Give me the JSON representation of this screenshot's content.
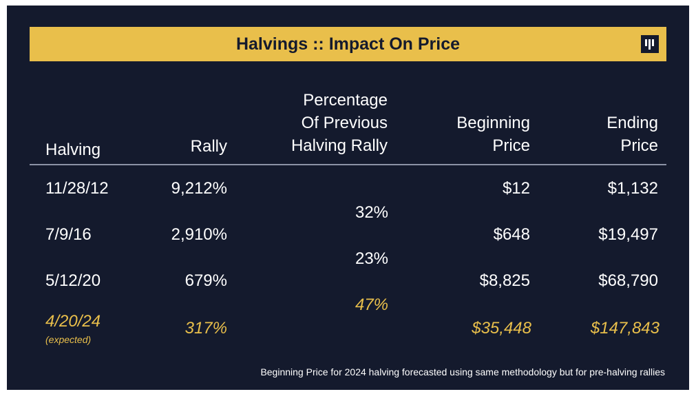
{
  "title": "Halvings :: Impact On Price",
  "colors": {
    "background": "#141a2d",
    "accent": "#e9bf4b",
    "text": "#ffffff",
    "rule": "#8c93a6"
  },
  "logo": {
    "icon": "messari-logo-icon"
  },
  "chart_data": {
    "type": "table",
    "title": "Halvings :: Impact On Price",
    "columns": [
      "Halving",
      "Rally",
      "Percentage Of Previous Halving Rally",
      "Beginning Price",
      "Ending Price"
    ],
    "header": {
      "halving": "Halving",
      "rally": "Rally",
      "pct_line1": "Percentage",
      "pct_line2": "Of Previous",
      "pct_line3": "Halving Rally",
      "begin_line1": "Beginning",
      "begin_line2": "Price",
      "end_line1": "Ending",
      "end_line2": "Price"
    },
    "rows": [
      {
        "halving": "11/28/12",
        "rally": "9,212%",
        "begin": "$12",
        "end": "$1,132"
      },
      {
        "halving": "7/9/16",
        "rally": "2,910%",
        "begin": "$648",
        "end": "$19,497"
      },
      {
        "halving": "5/12/20",
        "rally": "679%",
        "begin": "$8,825",
        "end": "$68,790"
      },
      {
        "halving": "4/20/24",
        "note": "(expected)",
        "rally": "317%",
        "begin": "$35,448",
        "end": "$147,843",
        "expected": true
      }
    ],
    "ratios": [
      "32%",
      "23%",
      "47%"
    ],
    "footnote": "Beginning Price for 2024 halving forecasted using same methodology but for pre-halving rallies"
  }
}
